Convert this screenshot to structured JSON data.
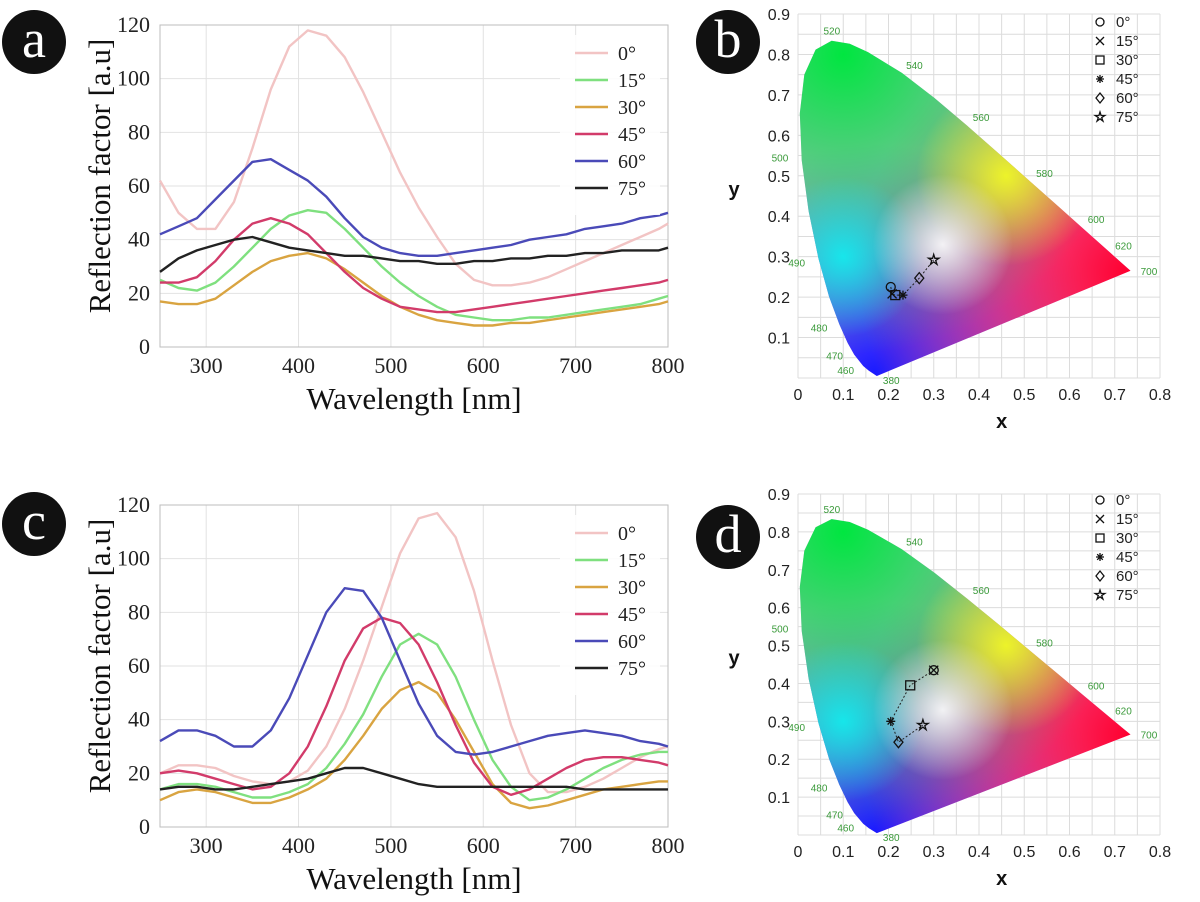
{
  "chart_data": [
    {
      "panel_label": "a",
      "type": "line",
      "xlabel": "Wavelength [nm]",
      "ylabel": "Reflection factor [a.u]",
      "xlim": [
        250,
        800
      ],
      "ylim": [
        0,
        120
      ],
      "xticks": [
        300,
        400,
        500,
        600,
        700,
        800
      ],
      "yticks": [
        0,
        20,
        40,
        60,
        80,
        100,
        120
      ],
      "legend_position": "top-right",
      "grid": true,
      "series": [
        {
          "name": "0°",
          "color": "#f2c4c4",
          "x": [
            250,
            270,
            290,
            310,
            330,
            350,
            370,
            390,
            410,
            430,
            450,
            470,
            490,
            510,
            530,
            550,
            570,
            590,
            610,
            630,
            650,
            670,
            690,
            710,
            730,
            750,
            770,
            790,
            800
          ],
          "y": [
            62,
            50,
            44,
            44,
            54,
            74,
            96,
            112,
            118,
            116,
            108,
            95,
            80,
            65,
            52,
            41,
            31,
            25,
            23,
            23,
            24,
            26,
            29,
            32,
            35,
            38,
            41,
            44,
            46
          ]
        },
        {
          "name": "15°",
          "color": "#7fe07f",
          "x": [
            250,
            270,
            290,
            310,
            330,
            350,
            370,
            390,
            410,
            430,
            450,
            470,
            490,
            510,
            530,
            550,
            570,
            590,
            610,
            630,
            650,
            670,
            690,
            710,
            730,
            750,
            770,
            790,
            800
          ],
          "y": [
            25,
            22,
            21,
            24,
            30,
            37,
            44,
            49,
            51,
            50,
            44,
            37,
            30,
            24,
            19,
            15,
            12,
            11,
            10,
            10,
            11,
            11,
            12,
            13,
            14,
            15,
            16,
            18,
            19
          ]
        },
        {
          "name": "30°",
          "color": "#d9a441",
          "x": [
            250,
            270,
            290,
            310,
            330,
            350,
            370,
            390,
            410,
            430,
            450,
            470,
            490,
            510,
            530,
            550,
            570,
            590,
            610,
            630,
            650,
            670,
            690,
            710,
            730,
            750,
            770,
            790,
            800
          ],
          "y": [
            17,
            16,
            16,
            18,
            23,
            28,
            32,
            34,
            35,
            33,
            29,
            24,
            19,
            15,
            12,
            10,
            9,
            8,
            8,
            9,
            9,
            10,
            11,
            12,
            13,
            14,
            15,
            16,
            17
          ]
        },
        {
          "name": "45°",
          "color": "#d23b6a",
          "x": [
            250,
            270,
            290,
            310,
            330,
            350,
            370,
            390,
            410,
            430,
            450,
            470,
            490,
            510,
            530,
            550,
            570,
            590,
            610,
            630,
            650,
            670,
            690,
            710,
            730,
            750,
            770,
            790,
            800
          ],
          "y": [
            24,
            24,
            26,
            32,
            40,
            46,
            48,
            46,
            42,
            35,
            28,
            22,
            18,
            15,
            14,
            13,
            13,
            14,
            15,
            16,
            17,
            18,
            19,
            20,
            21,
            22,
            23,
            24,
            25
          ]
        },
        {
          "name": "60°",
          "color": "#4a4ab8",
          "x": [
            250,
            270,
            290,
            310,
            330,
            350,
            370,
            390,
            410,
            430,
            450,
            470,
            490,
            510,
            530,
            550,
            570,
            590,
            610,
            630,
            650,
            670,
            690,
            710,
            730,
            750,
            770,
            790,
            800
          ],
          "y": [
            42,
            45,
            48,
            55,
            62,
            69,
            70,
            66,
            62,
            56,
            48,
            41,
            37,
            35,
            34,
            34,
            35,
            36,
            37,
            38,
            40,
            41,
            42,
            44,
            45,
            46,
            48,
            49,
            50
          ]
        },
        {
          "name": "75°",
          "color": "#222222",
          "x": [
            250,
            270,
            290,
            310,
            330,
            350,
            370,
            390,
            410,
            430,
            450,
            470,
            490,
            510,
            530,
            550,
            570,
            590,
            610,
            630,
            650,
            670,
            690,
            710,
            730,
            750,
            770,
            790,
            800
          ],
          "y": [
            28,
            33,
            36,
            38,
            40,
            41,
            39,
            37,
            36,
            35,
            34,
            34,
            33,
            32,
            32,
            31,
            31,
            32,
            32,
            33,
            33,
            34,
            34,
            35,
            35,
            36,
            36,
            36,
            37
          ]
        }
      ]
    },
    {
      "panel_label": "b",
      "type": "scatter",
      "xlabel": "x",
      "ylabel": "y",
      "xlim": [
        0,
        0.8
      ],
      "ylim": [
        0,
        0.9
      ],
      "xticks": [
        0,
        0.1,
        0.2,
        0.3,
        0.4,
        0.5,
        0.6,
        0.7,
        0.8
      ],
      "yticks": [
        0.1,
        0.2,
        0.3,
        0.4,
        0.5,
        0.6,
        0.7,
        0.8,
        0.9
      ],
      "grid": true,
      "legend_position": "top-right",
      "wavelength_labels": [
        "380",
        "460",
        "470",
        "480",
        "490",
        "500",
        "520",
        "540",
        "560",
        "580",
        "600",
        "620",
        "700"
      ],
      "series": [
        {
          "name": "0°",
          "marker": "circle",
          "x": 0.205,
          "y": 0.225
        },
        {
          "name": "15°",
          "marker": "cross",
          "x": 0.208,
          "y": 0.208
        },
        {
          "name": "30°",
          "marker": "square",
          "x": 0.215,
          "y": 0.205
        },
        {
          "name": "45°",
          "marker": "asterisk",
          "x": 0.232,
          "y": 0.205
        },
        {
          "name": "60°",
          "marker": "diamond",
          "x": 0.268,
          "y": 0.247
        },
        {
          "name": "75°",
          "marker": "star",
          "x": 0.3,
          "y": 0.292
        }
      ]
    },
    {
      "panel_label": "c",
      "type": "line",
      "xlabel": "Wavelength [nm]",
      "ylabel": "Reflection factor [a.u]",
      "xlim": [
        250,
        800
      ],
      "ylim": [
        0,
        120
      ],
      "xticks": [
        300,
        400,
        500,
        600,
        700,
        800
      ],
      "yticks": [
        0,
        20,
        40,
        60,
        80,
        100,
        120
      ],
      "legend_position": "top-right",
      "grid": true,
      "series": [
        {
          "name": "0°",
          "color": "#f2c4c4",
          "x": [
            250,
            270,
            290,
            310,
            330,
            350,
            370,
            390,
            410,
            430,
            450,
            470,
            490,
            510,
            530,
            550,
            570,
            590,
            610,
            630,
            650,
            670,
            690,
            710,
            730,
            750,
            770,
            790,
            800
          ],
          "y": [
            20,
            23,
            23,
            22,
            19,
            17,
            16,
            17,
            21,
            30,
            44,
            62,
            82,
            102,
            115,
            117,
            108,
            88,
            62,
            38,
            20,
            13,
            13,
            15,
            18,
            22,
            26,
            29,
            30
          ]
        },
        {
          "name": "15°",
          "color": "#7fe07f",
          "x": [
            250,
            270,
            290,
            310,
            330,
            350,
            370,
            390,
            410,
            430,
            450,
            470,
            490,
            510,
            530,
            550,
            570,
            590,
            610,
            630,
            650,
            670,
            690,
            710,
            730,
            750,
            770,
            790,
            800
          ],
          "y": [
            14,
            16,
            16,
            15,
            13,
            11,
            11,
            13,
            16,
            22,
            31,
            42,
            56,
            68,
            72,
            68,
            56,
            40,
            25,
            15,
            10,
            11,
            14,
            18,
            22,
            25,
            27,
            28,
            28
          ]
        },
        {
          "name": "30°",
          "color": "#d9a441",
          "x": [
            250,
            270,
            290,
            310,
            330,
            350,
            370,
            390,
            410,
            430,
            450,
            470,
            490,
            510,
            530,
            550,
            570,
            590,
            610,
            630,
            650,
            670,
            690,
            710,
            730,
            750,
            770,
            790,
            800
          ],
          "y": [
            10,
            13,
            14,
            13,
            11,
            9,
            9,
            11,
            14,
            18,
            25,
            34,
            44,
            51,
            54,
            50,
            40,
            28,
            16,
            9,
            7,
            8,
            10,
            12,
            14,
            15,
            16,
            17,
            17
          ]
        },
        {
          "name": "45°",
          "color": "#d23b6a",
          "x": [
            250,
            270,
            290,
            310,
            330,
            350,
            370,
            390,
            410,
            430,
            450,
            470,
            490,
            510,
            530,
            550,
            570,
            590,
            610,
            630,
            650,
            670,
            690,
            710,
            730,
            750,
            770,
            790,
            800
          ],
          "y": [
            20,
            21,
            20,
            18,
            16,
            14,
            15,
            20,
            30,
            45,
            62,
            74,
            78,
            76,
            68,
            54,
            38,
            24,
            15,
            12,
            14,
            18,
            22,
            25,
            26,
            26,
            25,
            24,
            23
          ]
        },
        {
          "name": "60°",
          "color": "#4a4ab8",
          "x": [
            250,
            270,
            290,
            310,
            330,
            350,
            370,
            390,
            410,
            430,
            450,
            470,
            490,
            510,
            530,
            550,
            570,
            590,
            610,
            630,
            650,
            670,
            690,
            710,
            730,
            750,
            770,
            790,
            800
          ],
          "y": [
            32,
            36,
            36,
            34,
            30,
            30,
            36,
            48,
            64,
            80,
            89,
            88,
            78,
            62,
            46,
            34,
            28,
            27,
            28,
            30,
            32,
            34,
            35,
            36,
            35,
            34,
            32,
            31,
            30
          ]
        },
        {
          "name": "75°",
          "color": "#222222",
          "x": [
            250,
            270,
            290,
            310,
            330,
            350,
            370,
            390,
            410,
            430,
            450,
            470,
            490,
            510,
            530,
            550,
            570,
            590,
            610,
            630,
            650,
            670,
            690,
            710,
            730,
            750,
            770,
            790,
            800
          ],
          "y": [
            14,
            15,
            15,
            14,
            14,
            15,
            16,
            17,
            18,
            20,
            22,
            22,
            20,
            18,
            16,
            15,
            15,
            15,
            15,
            15,
            15,
            15,
            15,
            14,
            14,
            14,
            14,
            14,
            14
          ]
        }
      ]
    },
    {
      "panel_label": "d",
      "type": "scatter",
      "xlabel": "x",
      "ylabel": "y",
      "xlim": [
        0,
        0.8
      ],
      "ylim": [
        0,
        0.9
      ],
      "xticks": [
        0,
        0.1,
        0.2,
        0.3,
        0.4,
        0.5,
        0.6,
        0.7,
        0.8
      ],
      "yticks": [
        0.1,
        0.2,
        0.3,
        0.4,
        0.5,
        0.6,
        0.7,
        0.8,
        0.9
      ],
      "grid": true,
      "legend_position": "top-right",
      "wavelength_labels": [
        "380",
        "460",
        "470",
        "480",
        "490",
        "500",
        "520",
        "540",
        "560",
        "580",
        "600",
        "620",
        "700"
      ],
      "series": [
        {
          "name": "0°",
          "marker": "circle",
          "x": 0.3,
          "y": 0.435
        },
        {
          "name": "15°",
          "marker": "cross",
          "x": 0.3,
          "y": 0.435
        },
        {
          "name": "30°",
          "marker": "square",
          "x": 0.248,
          "y": 0.395
        },
        {
          "name": "45°",
          "marker": "asterisk",
          "x": 0.205,
          "y": 0.3
        },
        {
          "name": "60°",
          "marker": "diamond",
          "x": 0.222,
          "y": 0.245
        },
        {
          "name": "75°",
          "marker": "star",
          "x": 0.276,
          "y": 0.29
        }
      ]
    }
  ]
}
